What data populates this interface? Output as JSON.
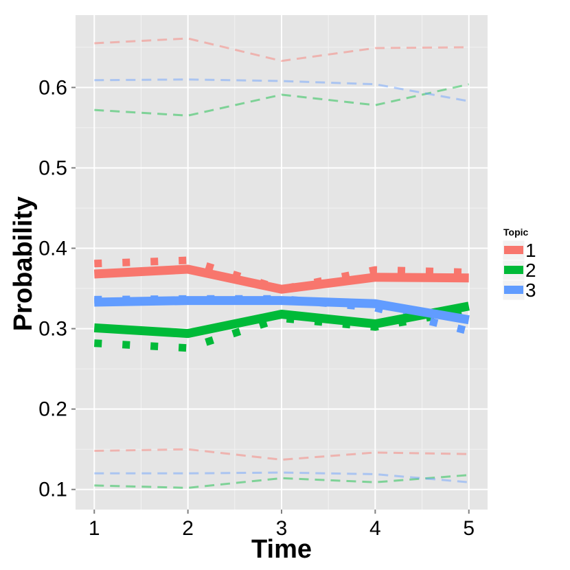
{
  "chart_data": {
    "type": "line",
    "title": "",
    "xlabel": "Time",
    "ylabel": "Probability",
    "x": [
      1,
      2,
      3,
      4,
      5
    ],
    "xlim": [
      0.8,
      5.2
    ],
    "ylim": [
      0.075,
      0.69
    ],
    "xticks": [
      1,
      2,
      3,
      4,
      5
    ],
    "yticks": [
      0.1,
      0.2,
      0.3,
      0.4,
      0.5,
      0.6
    ],
    "ytick_labels": [
      "0.1",
      "0.2",
      "0.3",
      "0.4",
      "0.5",
      "0.6"
    ],
    "xtick_labels": [
      "1",
      "2",
      "3",
      "4",
      "5"
    ],
    "grid": true,
    "legend": {
      "title": "Topic",
      "position": "right"
    },
    "colors": {
      "1": "#F8766D",
      "2": "#00BA38",
      "3": "#619CFF",
      "panel": "#E5E5E5",
      "grid_major": "#FFFFFF",
      "grid_minor": "#F2F2F2"
    },
    "series": [
      {
        "name": "1",
        "estimate": [
          0.368,
          0.374,
          0.349,
          0.364,
          0.363
        ],
        "dotted": [
          0.381,
          0.385,
          0.349,
          0.373,
          0.37
        ],
        "upper": [
          0.655,
          0.661,
          0.633,
          0.649,
          0.65
        ],
        "lower": [
          0.148,
          0.15,
          0.137,
          0.146,
          0.144
        ]
      },
      {
        "name": "2",
        "estimate": [
          0.301,
          0.294,
          0.318,
          0.306,
          0.328
        ],
        "dotted": [
          0.282,
          0.276,
          0.313,
          0.302,
          0.323
        ],
        "upper": [
          0.572,
          0.565,
          0.591,
          0.578,
          0.604
        ],
        "lower": [
          0.105,
          0.102,
          0.114,
          0.109,
          0.118
        ]
      },
      {
        "name": "3",
        "estimate": [
          0.333,
          0.335,
          0.335,
          0.331,
          0.311
        ],
        "dotted": [
          0.336,
          0.337,
          0.337,
          0.326,
          0.297
        ],
        "upper": [
          0.609,
          0.61,
          0.608,
          0.604,
          0.583
        ],
        "lower": [
          0.12,
          0.12,
          0.121,
          0.119,
          0.109
        ]
      }
    ]
  }
}
